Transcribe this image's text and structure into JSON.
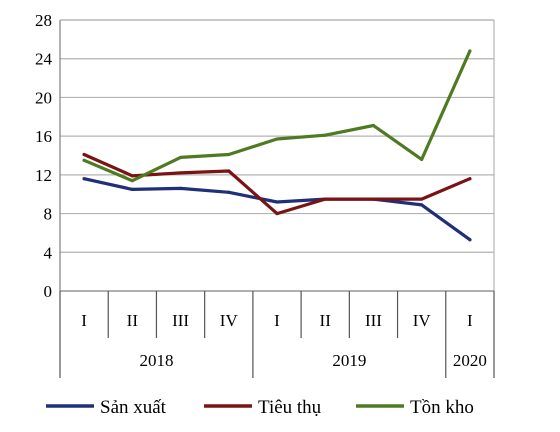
{
  "chart_data": {
    "type": "line",
    "title": "",
    "xlabel": "",
    "ylabel": "",
    "categories": [
      "I",
      "II",
      "III",
      "IV",
      "I",
      "II",
      "III",
      "IV",
      "I"
    ],
    "groups": [
      {
        "label": "2018",
        "span": 4
      },
      {
        "label": "2019",
        "span": 4
      },
      {
        "label": "2020",
        "span": 1
      }
    ],
    "ylim": [
      0,
      28
    ],
    "yticks": [
      0,
      4,
      8,
      12,
      16,
      20,
      24,
      28
    ],
    "grid": true,
    "legend_position": "bottom",
    "series": [
      {
        "name": "Sản xuất",
        "color": "#1f2f7a",
        "values": [
          11.6,
          10.5,
          10.6,
          10.2,
          9.2,
          9.5,
          9.5,
          8.9,
          5.3
        ]
      },
      {
        "name": "Tiêu thụ",
        "color": "#7a1414",
        "values": [
          14.1,
          11.9,
          12.2,
          12.4,
          8.0,
          9.5,
          9.5,
          9.5,
          11.6
        ]
      },
      {
        "name": "Tồn kho",
        "color": "#4e7a22",
        "values": [
          13.5,
          11.4,
          13.8,
          14.1,
          15.7,
          16.1,
          17.1,
          13.6,
          24.8
        ]
      }
    ]
  }
}
